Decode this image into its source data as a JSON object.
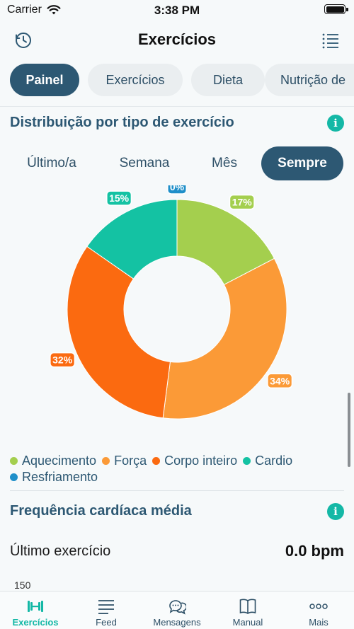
{
  "status_bar": {
    "carrier": "Carrier",
    "time": "3:38 PM"
  },
  "nav": {
    "title": "Exercícios",
    "left_icon": "history-clock-icon",
    "right_icon": "list-icon"
  },
  "tabs": [
    {
      "label": "Painel",
      "active": true
    },
    {
      "label": "Exercícios",
      "active": false
    },
    {
      "label": "Dieta",
      "active": false
    },
    {
      "label": "Nutrição de",
      "active": false
    }
  ],
  "distribution": {
    "title": "Distribuição por tipo de exercício",
    "info_icon": "info-icon",
    "periods": [
      {
        "label": "Último/a",
        "active": false
      },
      {
        "label": "Semana",
        "active": false
      },
      {
        "label": "Mês",
        "active": false
      },
      {
        "label": "Sempre",
        "active": true
      }
    ]
  },
  "chart_data": {
    "type": "pie",
    "donut": true,
    "categories": [
      "Aquecimento",
      "Força",
      "Corpo inteiro",
      "Cardio",
      "Resfriamento"
    ],
    "values": [
      17,
      34,
      32,
      15,
      0
    ],
    "labels": [
      "17%",
      "34%",
      "32%",
      "15%",
      "0%"
    ],
    "colors": [
      "#a4cf4e",
      "#fb9a37",
      "#fb6a10",
      "#14c2a3",
      "#1f8fc9"
    ],
    "legend_position": "bottom"
  },
  "heart_rate": {
    "title": "Frequência cardíaca média",
    "info_icon": "info-icon",
    "last_label": "Último exercício",
    "last_value": "0.0 bpm",
    "y_tick_top": "150"
  },
  "tab_bar": [
    {
      "label": "Exercícios",
      "icon": "dumbbell-icon",
      "active": true
    },
    {
      "label": "Feed",
      "icon": "feed-lines-icon",
      "active": false
    },
    {
      "label": "Mensagens",
      "icon": "chat-bubbles-icon",
      "active": false
    },
    {
      "label": "Manual",
      "icon": "book-icon",
      "active": false
    },
    {
      "label": "Mais",
      "icon": "more-dots-icon",
      "active": false
    }
  ]
}
